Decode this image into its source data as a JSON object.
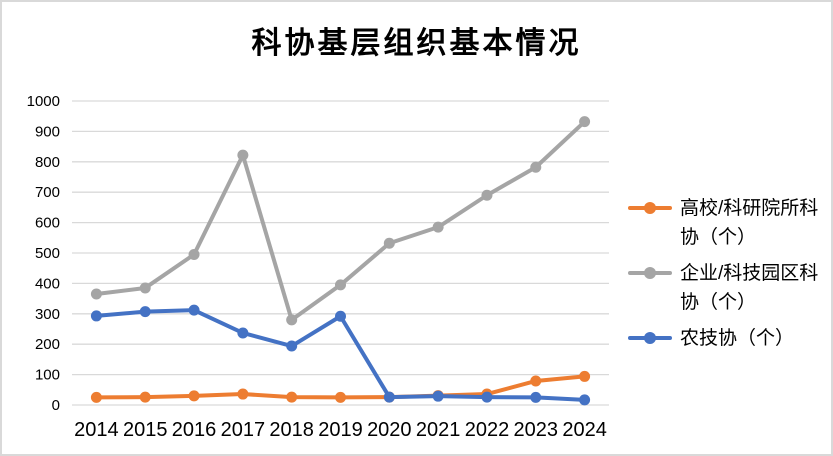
{
  "chart_data": {
    "type": "line",
    "title": "科协基层组织基本情况",
    "categories": [
      "2014",
      "2015",
      "2016",
      "2017",
      "2018",
      "2019",
      "2020",
      "2021",
      "2022",
      "2023",
      "2024"
    ],
    "series": [
      {
        "name": "高校/科研院所科协（个）",
        "color": "#ED7D31",
        "values": [
          25,
          26,
          30,
          36,
          26,
          25,
          26,
          31,
          36,
          79,
          94
        ]
      },
      {
        "name": "企业/科技园区科协（个）",
        "color": "#A5A5A5",
        "values": [
          365,
          385,
          495,
          822,
          280,
          395,
          532,
          585,
          690,
          782,
          932
        ]
      },
      {
        "name": "农技协（个）",
        "color": "#4472C4",
        "values": [
          293,
          307,
          312,
          237,
          194,
          292,
          26,
          29,
          26,
          25,
          17
        ]
      }
    ],
    "y_axis": {
      "min": 0,
      "max": 1000,
      "step": 100,
      "ticks": [
        "0",
        "100",
        "200",
        "300",
        "400",
        "500",
        "600",
        "700",
        "800",
        "900",
        "1000"
      ]
    },
    "x_axis": {
      "label": ""
    },
    "legend_position": "right",
    "grid": true,
    "marker": "circle"
  },
  "colors": {
    "gridline": "#D9D9D9",
    "axis_text": "#000000",
    "border": "#D9D9D9",
    "background": "#FFFFFF"
  }
}
